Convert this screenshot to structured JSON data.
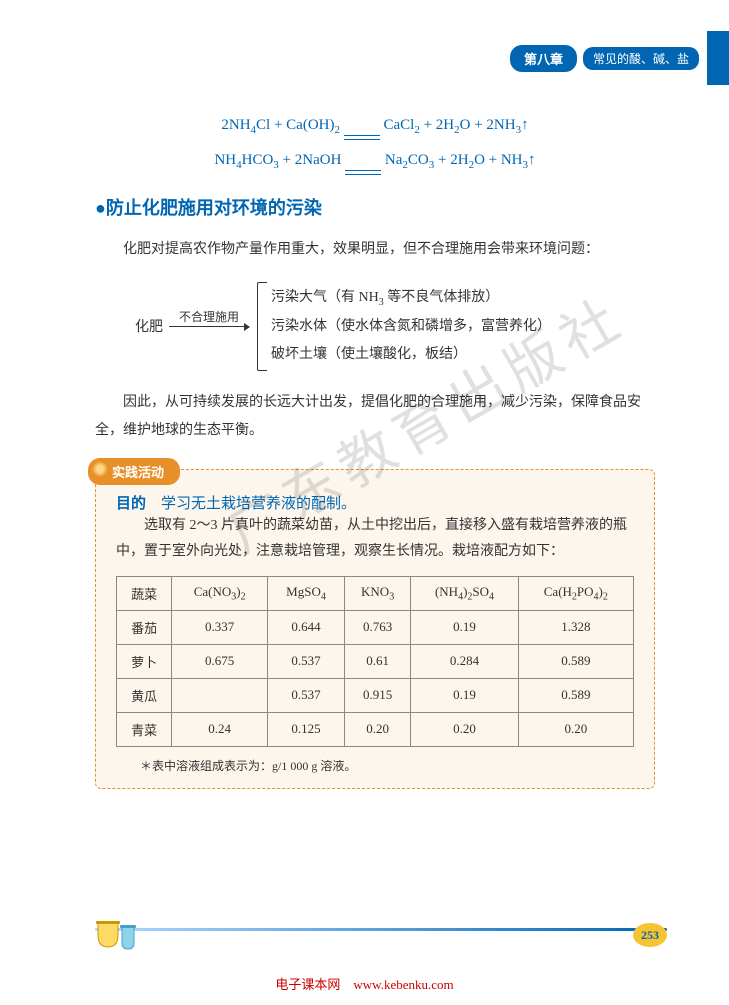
{
  "header": {
    "chapter_label": "第八章",
    "chapter_title": "常见的酸、碱、盐"
  },
  "equations": {
    "eq1_left": "2NH₄Cl + Ca(OH)₂",
    "eq1_right": "CaCl₂ + 2H₂O + 2NH₃↑",
    "eq2_left": "NH₄HCO₃ + 2NaOH",
    "eq2_right": "Na₂CO₃ + 2H₂O + NH₃↑"
  },
  "section": {
    "title": "●防止化肥施用对环境的污染",
    "para1": "化肥对提高农作物产量作用重大，效果明显，但不合理施用会带来环境问题：",
    "para2": "因此，从可持续发展的长远大计出发，提倡化肥的合理施用，减少污染，保障食品安全，维护地球的生态平衡。"
  },
  "diagram": {
    "subject": "化肥",
    "arrow_label": "不合理施用",
    "items": [
      "污染大气（有 NH₃ 等不良气体排放）",
      "污染水体（使水体含氮和磷增多，富营养化）",
      "破坏土壤（使土壤酸化，板结）"
    ]
  },
  "activity": {
    "badge": "实践活动",
    "purpose_label": "目的",
    "purpose_text": "学习无土栽培营养液的配制。",
    "description": "选取有 2～3 片真叶的蔬菜幼苗，从土中挖出后，直接移入盛有栽培营养液的瓶中，置于室外向光处，注意栽培管理，观察生长情况。栽培液配方如下：",
    "table": {
      "columns": [
        "蔬菜",
        "Ca(NO₃)₂",
        "MgSO₄",
        "KNO₃",
        "(NH₄)₂SO₄",
        "Ca(H₂PO₄)₂"
      ],
      "rows": [
        [
          "番茄",
          "0.337",
          "0.644",
          "0.763",
          "0.19",
          "1.328"
        ],
        [
          "萝卜",
          "0.675",
          "0.537",
          "0.61",
          "0.284",
          "0.589"
        ],
        [
          "黄瓜",
          "",
          "0.537",
          "0.915",
          "0.19",
          "0.589"
        ],
        [
          "青菜",
          "0.24",
          "0.125",
          "0.20",
          "0.20",
          "0.20"
        ]
      ],
      "note": "＊表中溶液组成表示为：g/1 000 g 溶液。",
      "border_color": "#8a8a8a",
      "cell_padding": "7px"
    },
    "box_bg": "#fcf6ed",
    "box_border": "#e89028"
  },
  "footer": {
    "page_number": "253",
    "source_label": "电子课本网",
    "source_url": "www.kebenku.com"
  },
  "watermark": "广东教育出版社",
  "colors": {
    "primary_blue": "#0066b3",
    "accent_orange": "#e89028",
    "page_badge_bg": "#f7c331",
    "text": "#333333",
    "footer_red": "#cc0000"
  },
  "typography": {
    "body_fontsize": 14,
    "title_fontsize": 18,
    "table_fontsize": 13,
    "activity_font": "KaiTi"
  }
}
